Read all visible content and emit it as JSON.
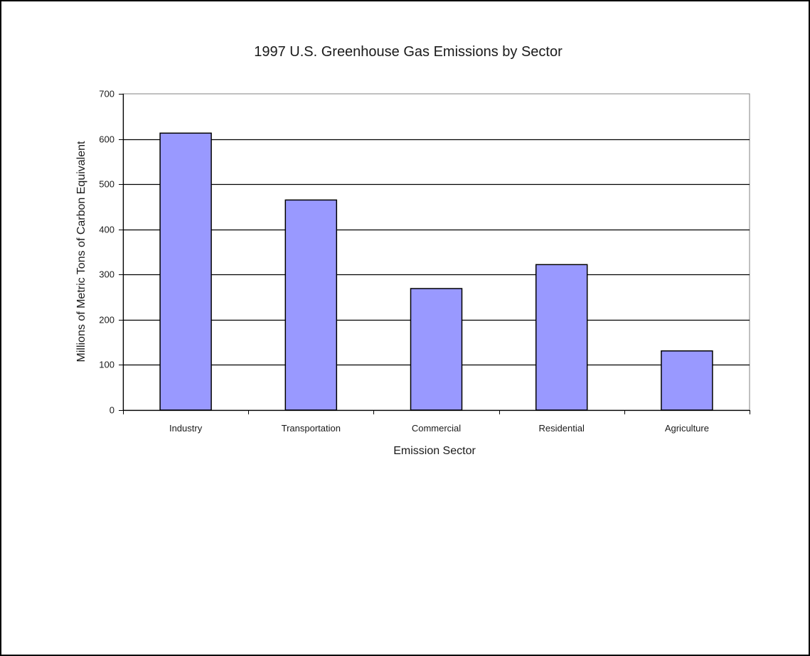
{
  "chart_data": {
    "type": "bar",
    "title": "1997 U.S. Greenhouse Gas Emissions by Sector",
    "xlabel": "Emission Sector",
    "ylabel": "Millions of Metric Tons of Carbon Equivalent",
    "categories": [
      "Industry",
      "Transportation",
      "Commercial",
      "Residential",
      "Agriculture"
    ],
    "values": [
      613,
      465,
      269,
      322,
      131
    ],
    "ylim": [
      0,
      700
    ],
    "yticks": [
      "0",
      "100",
      "200",
      "300",
      "400",
      "500",
      "600",
      "700"
    ],
    "grid": true,
    "legend": "none",
    "colors": {
      "bar_fill": "#9999ff",
      "bar_stroke": "#000000",
      "grid": "#000000",
      "plot_border": "#808080",
      "axis": "#000000"
    }
  }
}
